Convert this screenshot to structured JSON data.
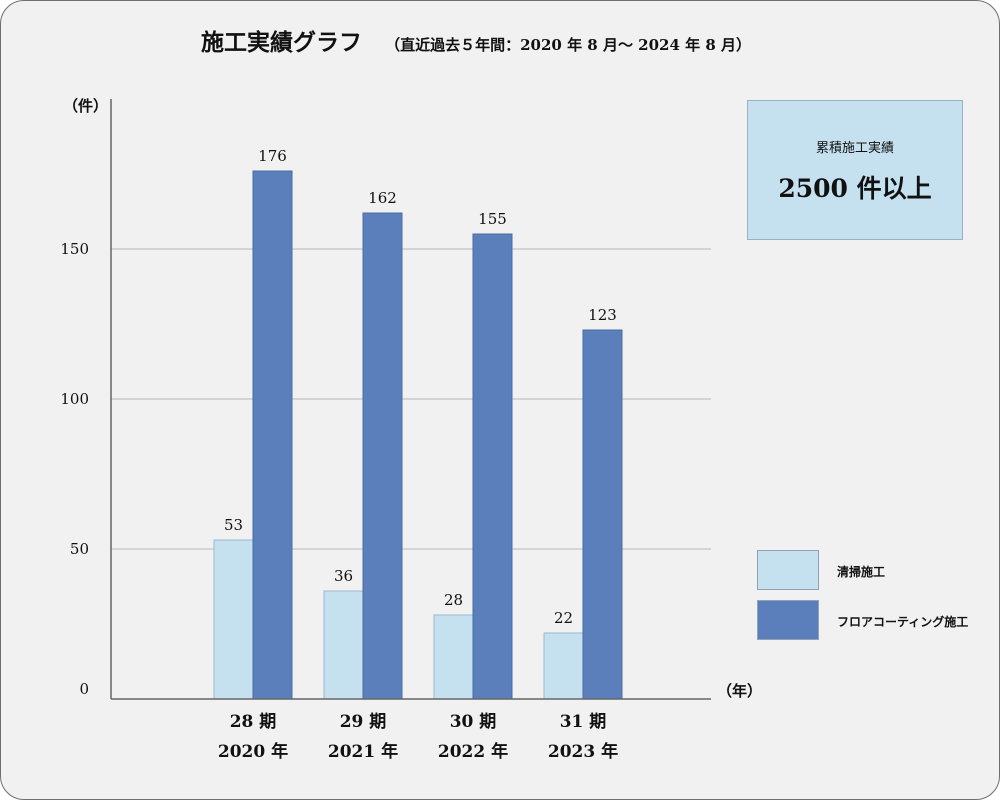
{
  "header": {
    "title": "施工実績グラフ",
    "subtitle": "（直近過去５年間：2020 年 8 月～ 2024 年 8 月）"
  },
  "summary": {
    "caption": "累積施工実績",
    "value": "2500 件以上"
  },
  "colors": {
    "series_light": "#c5e1f0",
    "series_dark": "#5b7fba",
    "background": "#f1f1f1"
  },
  "chart_data": {
    "type": "bar",
    "title": "施工実績グラフ",
    "subtitle": "（直近過去５年間：2020 年 8 月～ 2024 年 8 月）",
    "y_unit_label": "（件）",
    "x_unit_label": "（年）",
    "ylim": [
      0,
      200
    ],
    "y_ticks": [
      0,
      50,
      100,
      150
    ],
    "grid": true,
    "legend_position": "right",
    "categories": [
      [
        "28 期",
        "2020 年"
      ],
      [
        "29 期",
        "2021 年"
      ],
      [
        "30 期",
        "2022 年"
      ],
      [
        "31 期",
        "2023 年"
      ]
    ],
    "series": [
      {
        "name": "清掃施工",
        "values": [
          53,
          36,
          28,
          22
        ]
      },
      {
        "name": "フロアコーティング施工",
        "values": [
          176,
          162,
          155,
          123
        ]
      }
    ]
  }
}
